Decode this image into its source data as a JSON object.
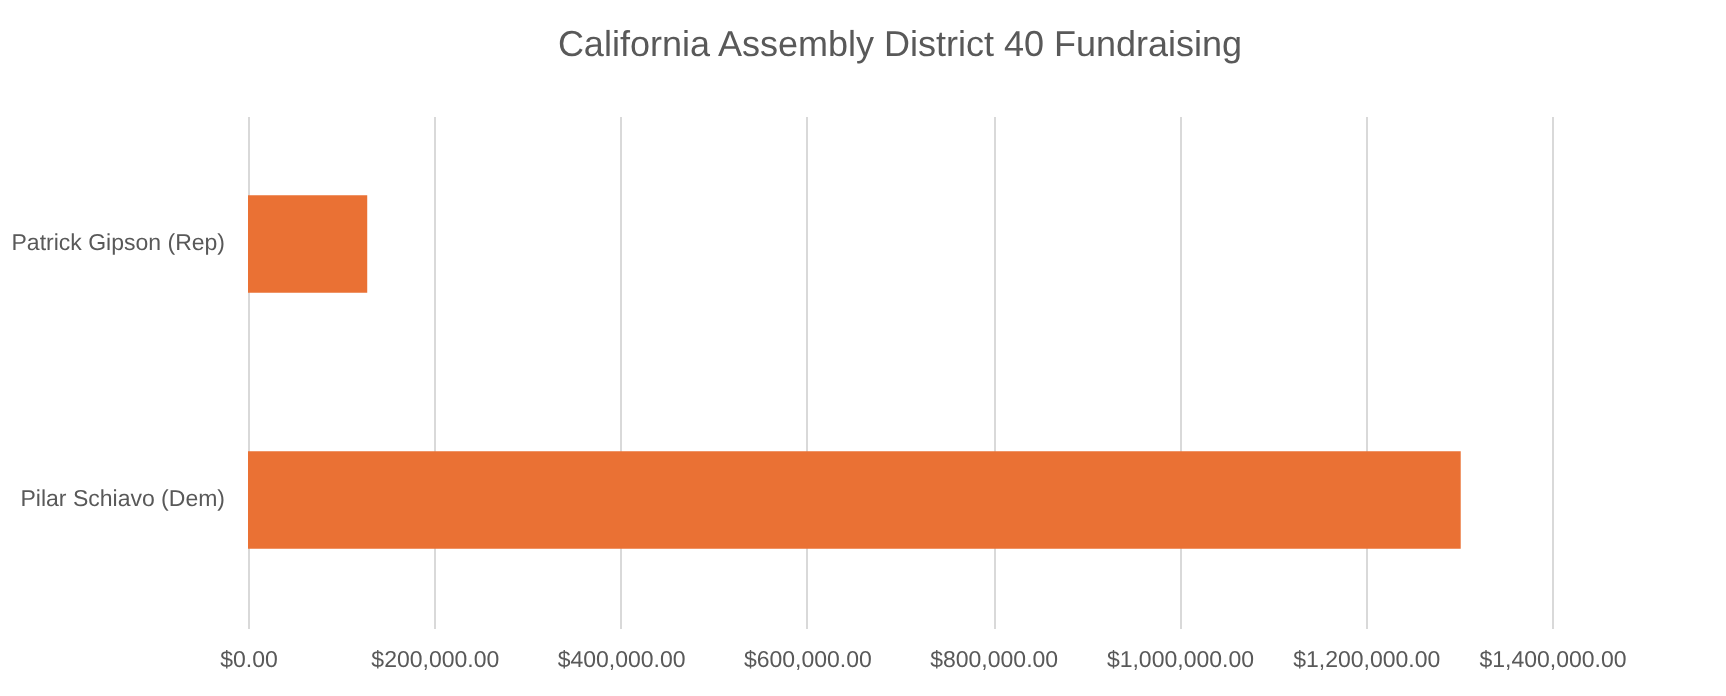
{
  "chart_data": {
    "type": "bar",
    "orientation": "horizontal",
    "title": "California Assembly District 40 Fundraising",
    "categories": [
      "Patrick Gipson (Rep)",
      "Pilar Schiavo (Dem)"
    ],
    "values": [
      128000,
      1302000
    ],
    "color": "#ea7134",
    "xlim": [
      0,
      1400000
    ],
    "xticks": [
      {
        "value": 0,
        "label": "$0.00"
      },
      {
        "value": 200000,
        "label": "$200,000.00"
      },
      {
        "value": 400000,
        "label": "$400,000.00"
      },
      {
        "value": 600000,
        "label": "$600,000.00"
      },
      {
        "value": 800000,
        "label": "$800,000.00"
      },
      {
        "value": 1000000,
        "label": "$1,000,000.00"
      },
      {
        "value": 1200000,
        "label": "$1,200,000.00"
      },
      {
        "value": 1400000,
        "label": "$1,400,000.00"
      }
    ],
    "grid": "x"
  }
}
